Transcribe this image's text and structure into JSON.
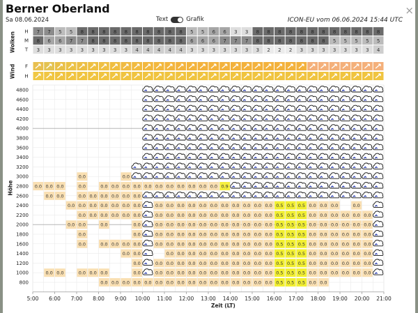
{
  "header": {
    "title": "Berner Oberland",
    "date": "Sa 08.06.2024",
    "toggle_left": "Text",
    "toggle_right": "Grafik",
    "model_info": "ICON-EU vom 06.06.2024 15:44 UTC",
    "close": "×"
  },
  "clouds": {
    "label": "Wolken",
    "rows": [
      "H",
      "M",
      "T"
    ],
    "H": [
      "7",
      "7",
      "5",
      "5",
      "8",
      "8",
      "8",
      "8",
      "8",
      "8",
      "8",
      "8",
      "8",
      "8",
      "5",
      "5",
      "6",
      "6",
      "3",
      "3",
      "8",
      "8",
      "8",
      "8",
      "8",
      "8",
      "8",
      "8",
      "8",
      "8",
      "8",
      "8"
    ],
    "M": [
      "8",
      "6",
      "6",
      "7",
      "7",
      "8",
      "8",
      "8",
      "8",
      "8",
      "8",
      "8",
      "8",
      "8",
      "6",
      "6",
      "6",
      "7",
      "7",
      "7",
      "8",
      "8",
      "8",
      "8",
      "8",
      "8",
      "8",
      "5",
      "5",
      "5",
      "5",
      "5"
    ],
    "T": [
      "3",
      "3",
      "3",
      "3",
      "3",
      "3",
      "3",
      "3",
      "3",
      "4",
      "4",
      "4",
      "4",
      "4",
      "3",
      "3",
      "3",
      "3",
      "3",
      "3",
      "3",
      "2",
      "2",
      "2",
      "3",
      "3",
      "3",
      "3",
      "3",
      "3",
      "3",
      "4"
    ],
    "colors": {
      "8": "#6b6b6b",
      "7": "#8c8c8c",
      "6": "#a6a6a6",
      "5": "#bcbcbc",
      "4": "#cecece",
      "3": "#dedede",
      "2": "#ececec"
    }
  },
  "wind": {
    "label": "Wind",
    "rows": [
      "F",
      "H"
    ],
    "F": [
      "#e8c050",
      "#e3c352",
      "#e9c048",
      "#ebc246",
      "#ecbf44",
      "#eec042",
      "#efc044",
      "#f0be40",
      "#f0bb42",
      "#f1bb40",
      "#f2b83e",
      "#f2b83e",
      "#f3b63e",
      "#f3b43e",
      "#f3b43c",
      "#f3b23c",
      "#f3b23c",
      "#f3b23c",
      "#f3b23c",
      "#f3b23c",
      "#f3b23c",
      "#f3b23c",
      "#f3b23c",
      "#f3b23c",
      "#f3b23c",
      "#f4b07a",
      "#f4b07a",
      "#f4b07a",
      "#f4b07a",
      "#f4b07a",
      "#f4b07a",
      "#f4b07a"
    ],
    "H": [
      "#f0c844",
      "#f0c643",
      "#f0c442",
      "#f0c440",
      "#f0c440",
      "#f0c440",
      "#f0c440",
      "#f0c440",
      "#f0c440",
      "#f0c440",
      "#f0c440",
      "#f0c440",
      "#f0c440",
      "#f0c440",
      "#f0c440",
      "#f0c440",
      "#f0c440",
      "#f0c440",
      "#f0c440",
      "#f0c440",
      "#f0c440",
      "#f0c440",
      "#f0c440",
      "#f0c440",
      "#f0c440",
      "#f0c440",
      "#f0c440",
      "#f0c440",
      "#f0c440",
      "#f0c440",
      "#f0c440",
      "#f0c440"
    ]
  },
  "chart_data": {
    "type": "heatmap",
    "ylabel": "Höhe",
    "xlabel": "Zeit (LT)",
    "x_ticks": [
      "5:00",
      "6:00",
      "7:00",
      "8:00",
      "9:00",
      "10:00",
      "11:00",
      "12:00",
      "13:00",
      "14:00",
      "15:00",
      "16:00",
      "17:00",
      "18:00",
      "19:00",
      "20:00",
      "21:00"
    ],
    "y_ticks": [
      "4800",
      "4600",
      "4400",
      "4200",
      "4000",
      "3800",
      "3600",
      "3400",
      "3200",
      "3000",
      "2800",
      "2600",
      "2400",
      "2200",
      "2000",
      "1800",
      "1600",
      "1400",
      "1200",
      "1000",
      "800"
    ],
    "cloud_icon": "cloud-icon",
    "cloud_start_col": 10,
    "rows": [
      {
        "y": "4800",
        "cells": [
          "",
          "",
          "",
          "",
          "",
          "",
          "",
          "",
          "",
          "",
          "C",
          "C",
          "C",
          "C",
          "C",
          "C",
          "C",
          "C",
          "C",
          "C",
          "C",
          "C",
          "C",
          "C",
          "C",
          "C",
          "C",
          "C",
          "C",
          "C",
          "C",
          "C"
        ]
      },
      {
        "y": "4600",
        "cells": [
          "",
          "",
          "",
          "",
          "",
          "",
          "",
          "",
          "",
          "",
          "C",
          "C",
          "C",
          "C",
          "C",
          "C",
          "C",
          "C",
          "C",
          "C",
          "C",
          "C",
          "C",
          "C",
          "C",
          "C",
          "C",
          "C",
          "C",
          "C",
          "C",
          "C"
        ]
      },
      {
        "y": "4400",
        "cells": [
          "",
          "",
          "",
          "",
          "",
          "",
          "",
          "",
          "",
          "",
          "C",
          "C",
          "C",
          "C",
          "C",
          "C",
          "C",
          "C",
          "C",
          "C",
          "C",
          "C",
          "C",
          "C",
          "C",
          "C",
          "C",
          "C",
          "C",
          "C",
          "C",
          "C"
        ]
      },
      {
        "y": "4200",
        "cells": [
          "",
          "",
          "",
          "",
          "",
          "",
          "",
          "",
          "",
          "",
          "C",
          "C",
          "C",
          "C",
          "C",
          "C",
          "C",
          "C",
          "C",
          "C",
          "C",
          "C",
          "C",
          "C",
          "C",
          "C",
          "C",
          "C",
          "C",
          "C",
          "C",
          "C"
        ]
      },
      {
        "y": "4000",
        "cells": [
          "",
          "",
          "",
          "",
          "",
          "",
          "",
          "",
          "",
          "",
          "C",
          "C",
          "C",
          "C",
          "C",
          "C",
          "C",
          "C",
          "C",
          "C",
          "C",
          "C",
          "C",
          "C",
          "C",
          "C",
          "C",
          "C",
          "C",
          "C",
          "C",
          "C"
        ]
      },
      {
        "y": "3800",
        "cells": [
          "",
          "",
          "",
          "",
          "",
          "",
          "",
          "",
          "",
          "",
          "C",
          "C",
          "C",
          "C",
          "C",
          "C",
          "C",
          "C",
          "C",
          "C",
          "C",
          "C",
          "C",
          "C",
          "C",
          "C",
          "C",
          "C",
          "C",
          "C",
          "C",
          "C"
        ]
      },
      {
        "y": "3600",
        "cells": [
          "",
          "",
          "",
          "",
          "",
          "",
          "",
          "",
          "",
          "",
          "C",
          "C",
          "C",
          "C",
          "C",
          "C",
          "C",
          "C",
          "C",
          "C",
          "C",
          "C",
          "C",
          "C",
          "C",
          "C",
          "C",
          "C",
          "C",
          "C",
          "C",
          "C"
        ]
      },
      {
        "y": "3400",
        "cells": [
          "",
          "",
          "",
          "",
          "",
          "",
          "",
          "",
          "",
          "",
          "C",
          "C",
          "C",
          "C",
          "C",
          "C",
          "C",
          "C",
          "C",
          "C",
          "C",
          "C",
          "C",
          "C",
          "C",
          "C",
          "C",
          "C",
          "C",
          "C",
          "C",
          "C"
        ]
      },
      {
        "y": "3200",
        "cells": [
          "",
          "",
          "",
          "",
          "",
          "",
          "",
          "",
          "",
          "C",
          "C",
          "C",
          "C",
          "C",
          "C",
          "C",
          "C",
          "C",
          "C",
          "C",
          "C",
          "C",
          "C",
          "C",
          "C",
          "C",
          "C",
          "C",
          "C",
          "C",
          "C",
          "C"
        ]
      },
      {
        "y": "3000",
        "cells": [
          "",
          "",
          "",
          "",
          "0.0",
          "",
          "",
          "",
          "0.0",
          "C",
          "C",
          "C",
          "C",
          "C",
          "C",
          "C",
          "C",
          "C",
          "C",
          "C",
          "C",
          "C",
          "C",
          "C",
          "C",
          "C",
          "C",
          "C",
          "C",
          "C",
          "C",
          "C"
        ]
      },
      {
        "y": "2800",
        "cells": [
          "0.0",
          "0.0",
          "0.0",
          "",
          "0.0",
          "",
          "0.0",
          "0.0",
          "0.0",
          "0.0",
          "0.0",
          "0.0",
          "0.0",
          "0.0",
          "0.0",
          "0.0",
          "0.0",
          "0.9",
          "C",
          "C",
          "C",
          "C",
          "C",
          "C",
          "C",
          "C",
          "C",
          "C",
          "C",
          "C",
          "C",
          "C"
        ]
      },
      {
        "y": "2600",
        "cells": [
          "",
          "0.0",
          "0.0",
          "",
          "0.0",
          "0.0",
          "0.0",
          "0.0",
          "0.0",
          "0.0",
          "C",
          "C",
          "C",
          "C",
          "C",
          "C",
          "C",
          "C",
          "C",
          "C",
          "C",
          "C",
          "C",
          "C",
          "C",
          "C",
          "C",
          "C",
          "C",
          "C",
          "C",
          "C"
        ]
      },
      {
        "y": "2400",
        "cells": [
          "",
          "",
          "",
          "0.0",
          "0.0",
          "0.0",
          "0.0",
          "0.0",
          "0.0",
          "0.0",
          "C",
          "0.0",
          "0.0",
          "0.0",
          "0.0",
          "0.0",
          "0.0",
          "0.0",
          "0.0",
          "0.0",
          "0.0",
          "0.0",
          "0.5",
          "0.5",
          "0.5",
          "0.0",
          "0.0",
          "0.0",
          "",
          "0.0",
          "",
          "C"
        ]
      },
      {
        "y": "2200",
        "cells": [
          "",
          "",
          "",
          "",
          "0.0",
          "0.0",
          "0.0",
          "0.0",
          "0.0",
          "0.0",
          "C",
          "0.0",
          "0.0",
          "0.0",
          "0.0",
          "0.0",
          "0.0",
          "0.0",
          "0.0",
          "0.0",
          "0.0",
          "0.0",
          "0.5",
          "0.5",
          "0.5",
          "0.0",
          "0.0",
          "0.0",
          "0.0",
          "0.0",
          "0.0",
          "C"
        ]
      },
      {
        "y": "2000",
        "cells": [
          "",
          "",
          "",
          "0.0",
          "0.0",
          "",
          "0.0",
          "",
          "",
          "0.0",
          "C",
          "0.0",
          "0.0",
          "0.0",
          "0.0",
          "0.0",
          "0.0",
          "0.0",
          "0.0",
          "0.0",
          "0.0",
          "0.0",
          "0.5",
          "0.5",
          "0.5",
          "0.0",
          "0.0",
          "0.0",
          "0.0",
          "0.0",
          "0.0",
          "C"
        ]
      },
      {
        "y": "1800",
        "cells": [
          "",
          "",
          "",
          "",
          "0.0",
          "",
          "",
          "",
          "",
          "0.0",
          "C",
          "0.0",
          "0.0",
          "0.0",
          "0.0",
          "0.0",
          "0.0",
          "0.0",
          "0.0",
          "0.0",
          "0.0",
          "0.0",
          "0.5",
          "0.5",
          "0.5",
          "0.0",
          "0.0",
          "0.0",
          "0.0",
          "0.0",
          "0.0",
          "C"
        ]
      },
      {
        "y": "1600",
        "cells": [
          "",
          "",
          "",
          "",
          "0.0",
          "",
          "0.0",
          "0.0",
          "0.0",
          "0.0",
          "C",
          "0.0",
          "0.0",
          "0.0",
          "0.0",
          "0.0",
          "0.0",
          "0.0",
          "0.0",
          "0.0",
          "0.0",
          "0.0",
          "0.5",
          "0.5",
          "0.5",
          "0.0",
          "0.0",
          "0.0",
          "0.0",
          "0.0",
          "0.0",
          "C"
        ]
      },
      {
        "y": "1400",
        "cells": [
          "",
          "",
          "",
          "",
          "",
          "",
          "",
          "",
          "0.0",
          "0.0",
          "C",
          "",
          "0.0",
          "0.0",
          "0.0",
          "0.0",
          "0.0",
          "0.0",
          "0.0",
          "0.0",
          "0.0",
          "0.0",
          "0.5",
          "0.5",
          "0.5",
          "0.0",
          "0.0",
          "0.0",
          "0.0",
          "0.0",
          "0.0",
          "C"
        ]
      },
      {
        "y": "1200",
        "cells": [
          "",
          "",
          "",
          "",
          "",
          "",
          "",
          "",
          "",
          "0.0",
          "C",
          "0.0",
          "0.0",
          "0.0",
          "0.0",
          "0.0",
          "0.0",
          "0.0",
          "0.0",
          "0.0",
          "0.0",
          "0.0",
          "0.5",
          "0.5",
          "0.5",
          "0.0",
          "0.0",
          "0.0",
          "0.0",
          "0.0",
          "0.0",
          "C"
        ]
      },
      {
        "y": "1000",
        "cells": [
          "",
          "0.0",
          "0.0",
          "",
          "0.0",
          "0.0",
          "0.0",
          "",
          "",
          "0.0",
          "C",
          "0.0",
          "0.0",
          "0.0",
          "0.0",
          "0.0",
          "0.0",
          "0.0",
          "0.0",
          "0.0",
          "0.0",
          "0.0",
          "0.5",
          "0.5",
          "0.5",
          "0.0",
          "0.0",
          "0.0",
          "0.0",
          "0.0",
          "0.0",
          "C"
        ]
      },
      {
        "y": "800",
        "cells": [
          "",
          "",
          "",
          "",
          "",
          "",
          "0.0",
          "0.0",
          "0.0",
          "0.0",
          "0.0",
          "0.0",
          "0.0",
          "0.0",
          "0.0",
          "0.0",
          "0.0",
          "0.0",
          "0.0",
          "0.0",
          "0.0",
          "0.0",
          "0.5",
          "0.5",
          "0.5",
          "0.0",
          "0.0",
          "",
          "",
          "",
          "",
          ""
        ]
      }
    ],
    "cell_colors": {
      "0.0": "#f9dfb2",
      "0.5": "#f2ef32",
      "0.9": "#f5ee40"
    }
  }
}
